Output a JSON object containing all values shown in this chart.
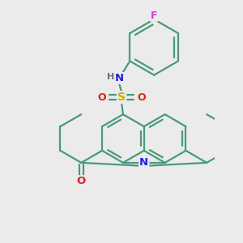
{
  "background_color": "#ebebeb",
  "bond_color": "#4a9a7a",
  "atom_colors": {
    "F": "#d040d0",
    "N": "#2020e0",
    "H": "#707070",
    "S": "#c8b000",
    "O": "#e02020"
  },
  "bond_width": 1.6,
  "title": ""
}
